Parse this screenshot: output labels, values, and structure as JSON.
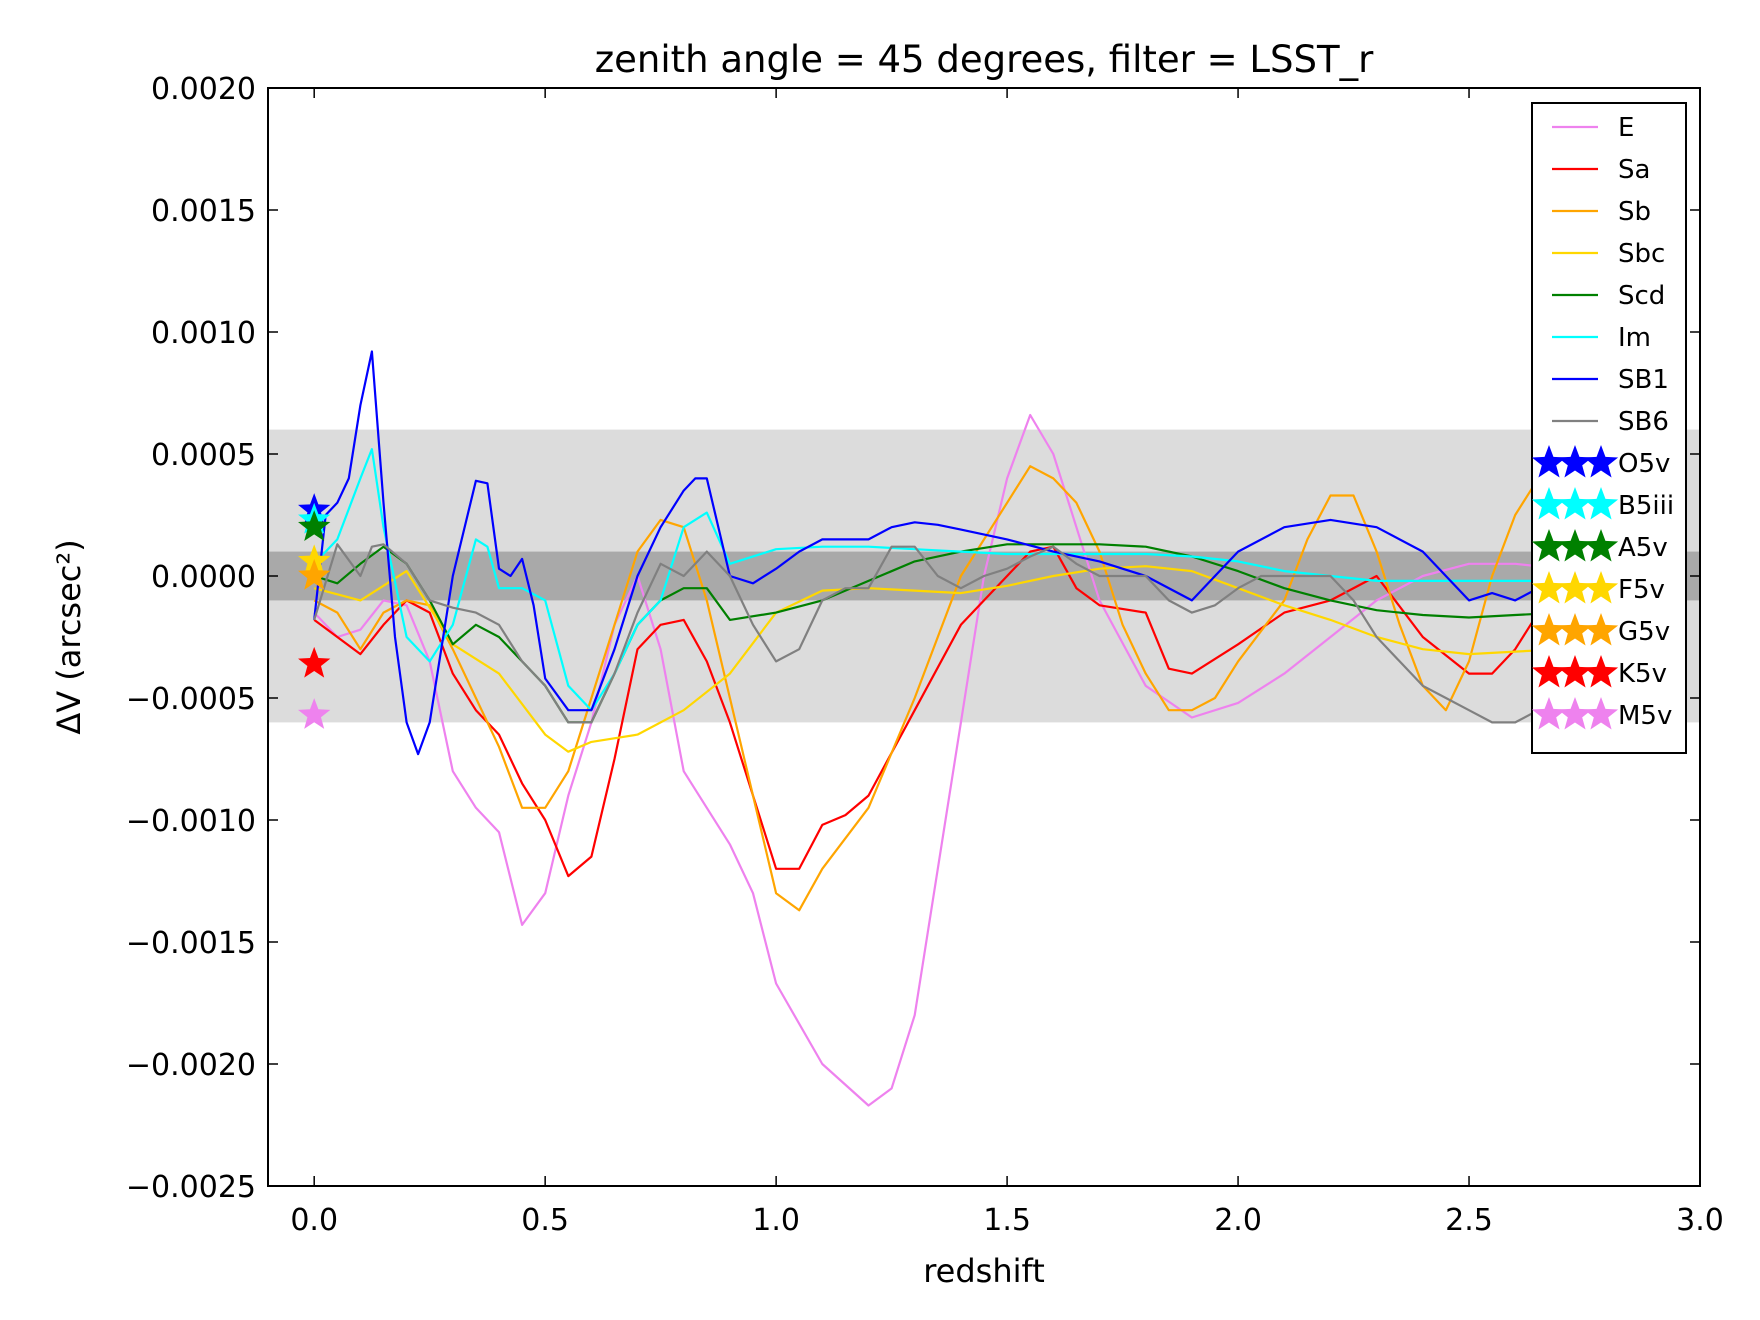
{
  "chart_data": {
    "type": "line",
    "title": "zenith angle = 45 degrees, filter = LSST_r",
    "xlabel": "redshift",
    "ylabel": "ΔV (arcsec²)",
    "xlim": [
      -0.1,
      3.0
    ],
    "ylim": [
      -0.0025,
      0.002
    ],
    "xticks": [
      0.0,
      0.5,
      1.0,
      1.5,
      2.0,
      2.5,
      3.0
    ],
    "xtick_labels": [
      "0.0",
      "0.5",
      "1.0",
      "1.5",
      "2.0",
      "2.5",
      "3.0"
    ],
    "yticks": [
      0.002,
      0.0015,
      0.001,
      0.0005,
      0.0,
      -0.0005,
      -0.001,
      -0.0015,
      -0.002,
      -0.0025
    ],
    "ytick_labels": [
      "0.0020",
      "0.0015",
      "0.0010",
      "0.0005",
      "0.0000",
      "−0.0005",
      "−0.0010",
      "−0.0015",
      "−0.0020",
      "−0.0025"
    ],
    "bands": [
      {
        "y": [
          -0.0006,
          0.0006
        ],
        "color": "#dcdcdc"
      },
      {
        "y": [
          -0.0001,
          0.0001
        ],
        "color": "#a9a9a9"
      }
    ],
    "legend_position": "upper-right",
    "series": [
      {
        "name": "E",
        "color": "#ee82ee",
        "x": [
          0.0,
          0.05,
          0.1,
          0.15,
          0.2,
          0.25,
          0.3,
          0.35,
          0.4,
          0.45,
          0.5,
          0.55,
          0.6,
          0.65,
          0.7,
          0.75,
          0.8,
          0.85,
          0.9,
          0.95,
          1.0,
          1.1,
          1.2,
          1.25,
          1.3,
          1.35,
          1.4,
          1.45,
          1.5,
          1.55,
          1.6,
          1.65,
          1.7,
          1.8,
          1.9,
          2.0,
          2.1,
          2.2,
          2.3,
          2.4,
          2.5,
          2.6,
          2.7
        ],
        "y": [
          -0.00015,
          -0.00025,
          -0.00022,
          -0.0001,
          -0.00012,
          -0.00035,
          -0.0008,
          -0.00095,
          -0.00105,
          -0.00143,
          -0.0013,
          -0.0009,
          -0.0006,
          -0.0002,
          0.0,
          -0.0003,
          -0.0008,
          -0.00095,
          -0.0011,
          -0.0013,
          -0.00167,
          -0.002,
          -0.00217,
          -0.0021,
          -0.0018,
          -0.0012,
          -0.0006,
          0.0,
          0.0004,
          0.00066,
          0.0005,
          0.0002,
          -0.0001,
          -0.00045,
          -0.00058,
          -0.00052,
          -0.0004,
          -0.00025,
          -0.0001,
          0.0,
          5e-05,
          5e-05,
          3e-05
        ]
      },
      {
        "name": "Sa",
        "color": "#ff0000",
        "x": [
          0.0,
          0.05,
          0.1,
          0.15,
          0.2,
          0.25,
          0.3,
          0.35,
          0.4,
          0.45,
          0.5,
          0.55,
          0.6,
          0.65,
          0.7,
          0.75,
          0.8,
          0.85,
          0.9,
          0.95,
          1.0,
          1.05,
          1.1,
          1.15,
          1.2,
          1.3,
          1.4,
          1.5,
          1.55,
          1.6,
          1.65,
          1.7,
          1.8,
          1.85,
          1.9,
          2.0,
          2.1,
          2.2,
          2.3,
          2.4,
          2.5,
          2.55,
          2.6,
          2.65,
          2.7
        ],
        "y": [
          -0.00018,
          -0.00025,
          -0.00032,
          -0.0002,
          -0.0001,
          -0.00015,
          -0.0004,
          -0.00055,
          -0.00065,
          -0.00085,
          -0.001,
          -0.00123,
          -0.00115,
          -0.00075,
          -0.0003,
          -0.0002,
          -0.00018,
          -0.00035,
          -0.0006,
          -0.0009,
          -0.0012,
          -0.0012,
          -0.00102,
          -0.00098,
          -0.0009,
          -0.00055,
          -0.0002,
          0.0,
          0.0001,
          0.00012,
          -5e-05,
          -0.00012,
          -0.00015,
          -0.00038,
          -0.0004,
          -0.00028,
          -0.00015,
          -0.0001,
          0.0,
          -0.00025,
          -0.0004,
          -0.0004,
          -0.0003,
          -0.00015,
          -5e-05
        ]
      },
      {
        "name": "Sb",
        "color": "#ffa500",
        "x": [
          0.0,
          0.05,
          0.1,
          0.15,
          0.2,
          0.25,
          0.3,
          0.35,
          0.4,
          0.45,
          0.5,
          0.55,
          0.6,
          0.65,
          0.7,
          0.75,
          0.8,
          0.85,
          0.9,
          0.95,
          1.0,
          1.05,
          1.1,
          1.2,
          1.3,
          1.4,
          1.5,
          1.55,
          1.6,
          1.65,
          1.7,
          1.75,
          1.8,
          1.85,
          1.9,
          1.95,
          2.0,
          2.1,
          2.15,
          2.2,
          2.25,
          2.3,
          2.35,
          2.4,
          2.45,
          2.5,
          2.55,
          2.6,
          2.65,
          2.7
        ],
        "y": [
          -0.0001,
          -0.00015,
          -0.0003,
          -0.00015,
          -0.0001,
          -0.00012,
          -0.0003,
          -0.0005,
          -0.0007,
          -0.00095,
          -0.00095,
          -0.0008,
          -0.0005,
          -0.0002,
          0.0001,
          0.00023,
          0.0002,
          -0.0001,
          -0.0005,
          -0.0009,
          -0.0013,
          -0.00137,
          -0.0012,
          -0.00095,
          -0.0005,
          0.0,
          0.0003,
          0.00045,
          0.0004,
          0.0003,
          0.0001,
          -0.0002,
          -0.0004,
          -0.00055,
          -0.00055,
          -0.0005,
          -0.00035,
          -0.0001,
          0.00015,
          0.00033,
          0.00033,
          0.0001,
          -0.0002,
          -0.00045,
          -0.00055,
          -0.00035,
          0.0,
          0.00025,
          0.0004,
          0.0005
        ]
      },
      {
        "name": "Sbc",
        "color": "#ffd700",
        "x": [
          0.0,
          0.1,
          0.2,
          0.3,
          0.4,
          0.5,
          0.55,
          0.6,
          0.7,
          0.8,
          0.9,
          1.0,
          1.1,
          1.2,
          1.3,
          1.4,
          1.5,
          1.6,
          1.7,
          1.8,
          1.9,
          2.0,
          2.1,
          2.2,
          2.3,
          2.4,
          2.5,
          2.6,
          2.7
        ],
        "y": [
          -5e-05,
          -0.0001,
          2e-05,
          -0.00028,
          -0.0004,
          -0.00065,
          -0.00072,
          -0.00068,
          -0.00065,
          -0.00055,
          -0.0004,
          -0.00015,
          -6e-05,
          -5e-05,
          -6e-05,
          -7e-05,
          -4e-05,
          0.0,
          3e-05,
          4e-05,
          2e-05,
          -5e-05,
          -0.00012,
          -0.00018,
          -0.00025,
          -0.0003,
          -0.00032,
          -0.00031,
          -0.0003
        ]
      },
      {
        "name": "Scd",
        "color": "#008000",
        "x": [
          0.0,
          0.05,
          0.1,
          0.15,
          0.2,
          0.25,
          0.3,
          0.35,
          0.4,
          0.45,
          0.5,
          0.55,
          0.6,
          0.65,
          0.7,
          0.75,
          0.8,
          0.85,
          0.9,
          1.0,
          1.1,
          1.2,
          1.3,
          1.4,
          1.5,
          1.6,
          1.7,
          1.8,
          1.9,
          2.0,
          2.1,
          2.2,
          2.3,
          2.4,
          2.5,
          2.6,
          2.7
        ],
        "y": [
          0.0,
          -3e-05,
          5e-05,
          0.00012,
          5e-05,
          -0.0001,
          -0.00028,
          -0.0002,
          -0.00025,
          -0.00035,
          -0.00045,
          -0.0006,
          -0.0006,
          -0.0004,
          -0.0002,
          -0.0001,
          -5e-05,
          -5e-05,
          -0.00018,
          -0.00015,
          -0.0001,
          -2e-05,
          6e-05,
          0.0001,
          0.00013,
          0.00013,
          0.00013,
          0.00012,
          8e-05,
          2e-05,
          -5e-05,
          -0.0001,
          -0.00014,
          -0.00016,
          -0.00017,
          -0.00016,
          -0.00015
        ]
      },
      {
        "name": "Im",
        "color": "#00ffff",
        "x": [
          0.0,
          0.05,
          0.1,
          0.125,
          0.15,
          0.2,
          0.25,
          0.3,
          0.35,
          0.375,
          0.4,
          0.45,
          0.5,
          0.55,
          0.6,
          0.65,
          0.7,
          0.75,
          0.8,
          0.85,
          0.9,
          1.0,
          1.1,
          1.2,
          1.3,
          1.4,
          1.5,
          1.6,
          1.7,
          1.8,
          1.9,
          2.0,
          2.1,
          2.2,
          2.3,
          2.4,
          2.5,
          2.6,
          2.7
        ],
        "y": [
          5e-05,
          0.00015,
          0.0004,
          0.00052,
          0.0002,
          -0.00025,
          -0.00035,
          -0.0002,
          0.00015,
          0.00012,
          -5e-05,
          -5e-05,
          -0.0001,
          -0.00045,
          -0.00055,
          -0.0004,
          -0.0002,
          -0.0001,
          0.0002,
          0.00026,
          5e-05,
          0.00011,
          0.00012,
          0.00012,
          0.00011,
          0.0001,
          9e-05,
          9e-05,
          9e-05,
          9e-05,
          8e-05,
          6e-05,
          2e-05,
          0.0,
          -2e-05,
          -2e-05,
          -2e-05,
          -2e-05,
          -2e-05
        ]
      },
      {
        "name": "SB1",
        "color": "#0000ff",
        "x": [
          0.0,
          0.025,
          0.05,
          0.075,
          0.1,
          0.125,
          0.15,
          0.175,
          0.2,
          0.225,
          0.25,
          0.3,
          0.35,
          0.375,
          0.4,
          0.425,
          0.45,
          0.475,
          0.5,
          0.55,
          0.6,
          0.65,
          0.7,
          0.75,
          0.8,
          0.825,
          0.85,
          0.9,
          0.95,
          1.0,
          1.05,
          1.1,
          1.15,
          1.2,
          1.25,
          1.3,
          1.35,
          1.4,
          1.5,
          1.6,
          1.7,
          1.8,
          1.9,
          2.0,
          2.1,
          2.2,
          2.3,
          2.4,
          2.5,
          2.55,
          2.6,
          2.7
        ],
        "y": [
          -0.00018,
          0.00025,
          0.0003,
          0.0004,
          0.0007,
          0.00092,
          0.0003,
          -0.00025,
          -0.0006,
          -0.00073,
          -0.0006,
          0.0,
          0.00039,
          0.00038,
          3e-05,
          0.0,
          7e-05,
          -0.00012,
          -0.00042,
          -0.00055,
          -0.00055,
          -0.0003,
          0.0,
          0.0002,
          0.00035,
          0.0004,
          0.0004,
          0.0,
          -3e-05,
          3e-05,
          0.0001,
          0.00015,
          0.00015,
          0.00015,
          0.0002,
          0.00022,
          0.00021,
          0.00019,
          0.00015,
          0.0001,
          6e-05,
          0.0,
          -0.0001,
          0.0001,
          0.0002,
          0.00023,
          0.0002,
          0.0001,
          -0.0001,
          -7e-05,
          -0.0001,
          0.0
        ]
      },
      {
        "name": "SB6",
        "color": "#808080",
        "x": [
          0.0,
          0.05,
          0.1,
          0.125,
          0.15,
          0.2,
          0.25,
          0.3,
          0.35,
          0.4,
          0.45,
          0.5,
          0.55,
          0.6,
          0.65,
          0.7,
          0.75,
          0.8,
          0.85,
          0.9,
          0.95,
          1.0,
          1.05,
          1.1,
          1.15,
          1.2,
          1.25,
          1.3,
          1.35,
          1.4,
          1.45,
          1.5,
          1.55,
          1.6,
          1.65,
          1.7,
          1.75,
          1.8,
          1.85,
          1.9,
          1.95,
          2.0,
          2.05,
          2.1,
          2.15,
          2.2,
          2.25,
          2.3,
          2.35,
          2.4,
          2.45,
          2.5,
          2.55,
          2.6,
          2.65,
          2.7
        ],
        "y": [
          -0.00018,
          0.00013,
          0.0,
          0.00012,
          0.00013,
          5e-05,
          -0.0001,
          -0.00013,
          -0.00015,
          -0.0002,
          -0.00035,
          -0.00045,
          -0.0006,
          -0.0006,
          -0.0004,
          -0.00015,
          5e-05,
          0.0,
          0.0001,
          0.0,
          -0.0002,
          -0.00035,
          -0.0003,
          -0.0001,
          -5e-05,
          -5e-05,
          0.00012,
          0.00012,
          0.0,
          -5e-05,
          0.0,
          3e-05,
          8e-05,
          0.00012,
          5e-05,
          0.0,
          0.0,
          0.0,
          -0.0001,
          -0.00015,
          -0.00012,
          -5e-05,
          0.0,
          0.0,
          0.0,
          0.0,
          -0.0001,
          -0.00025,
          -0.00035,
          -0.00045,
          -0.0005,
          -0.00055,
          -0.0006,
          -0.0006,
          -0.00055,
          -0.0004
        ]
      }
    ],
    "stars": [
      {
        "name": "O5v",
        "color": "#0000ff",
        "x": 0.0,
        "y": 0.00027
      },
      {
        "name": "B5iii",
        "color": "#00ffff",
        "x": 0.0,
        "y": 0.00023
      },
      {
        "name": "A5v",
        "color": "#008000",
        "x": 0.0,
        "y": 0.0002
      },
      {
        "name": "F5v",
        "color": "#ffd700",
        "x": 0.0,
        "y": 6e-05
      },
      {
        "name": "G5v",
        "color": "#ffa500",
        "x": 0.0,
        "y": 0.0
      },
      {
        "name": "K5v",
        "color": "#ff0000",
        "x": 0.0,
        "y": -0.00036
      },
      {
        "name": "M5v",
        "color": "#ee82ee",
        "x": 0.0,
        "y": -0.00057
      }
    ]
  }
}
